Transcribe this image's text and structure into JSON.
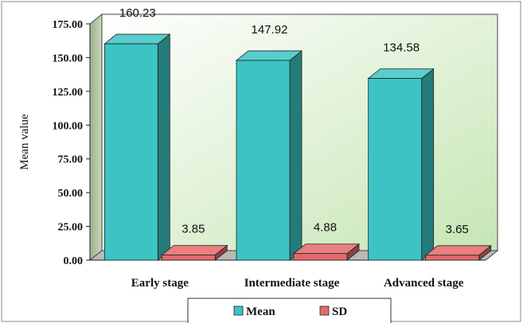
{
  "chart_data": {
    "type": "bar",
    "categories": [
      "Early stage",
      "Intermediate stage",
      "Advanced stage"
    ],
    "series": [
      {
        "name": "Mean",
        "values": [
          160.23,
          147.92,
          134.58
        ],
        "color": "#3cc4c4"
      },
      {
        "name": "SD",
        "values": [
          3.85,
          4.88,
          3.65
        ],
        "color": "#e46a6a"
      }
    ],
    "data_labels": [
      [
        "160.23",
        "147.92",
        "134.58"
      ],
      [
        "3.85",
        "4.88",
        "3.65"
      ]
    ],
    "y_ticks": [
      "0.00",
      "25.00",
      "50.00",
      "75.00",
      "100.00",
      "125.00",
      "150.00",
      "175.00"
    ],
    "title": "",
    "xlabel": "",
    "ylabel": "Mean value",
    "ylim": [
      0,
      175
    ],
    "grid": false,
    "legend_position": "bottom",
    "three_d": true,
    "plot_background": [
      "#ffffff",
      "#c6e6b4"
    ]
  }
}
